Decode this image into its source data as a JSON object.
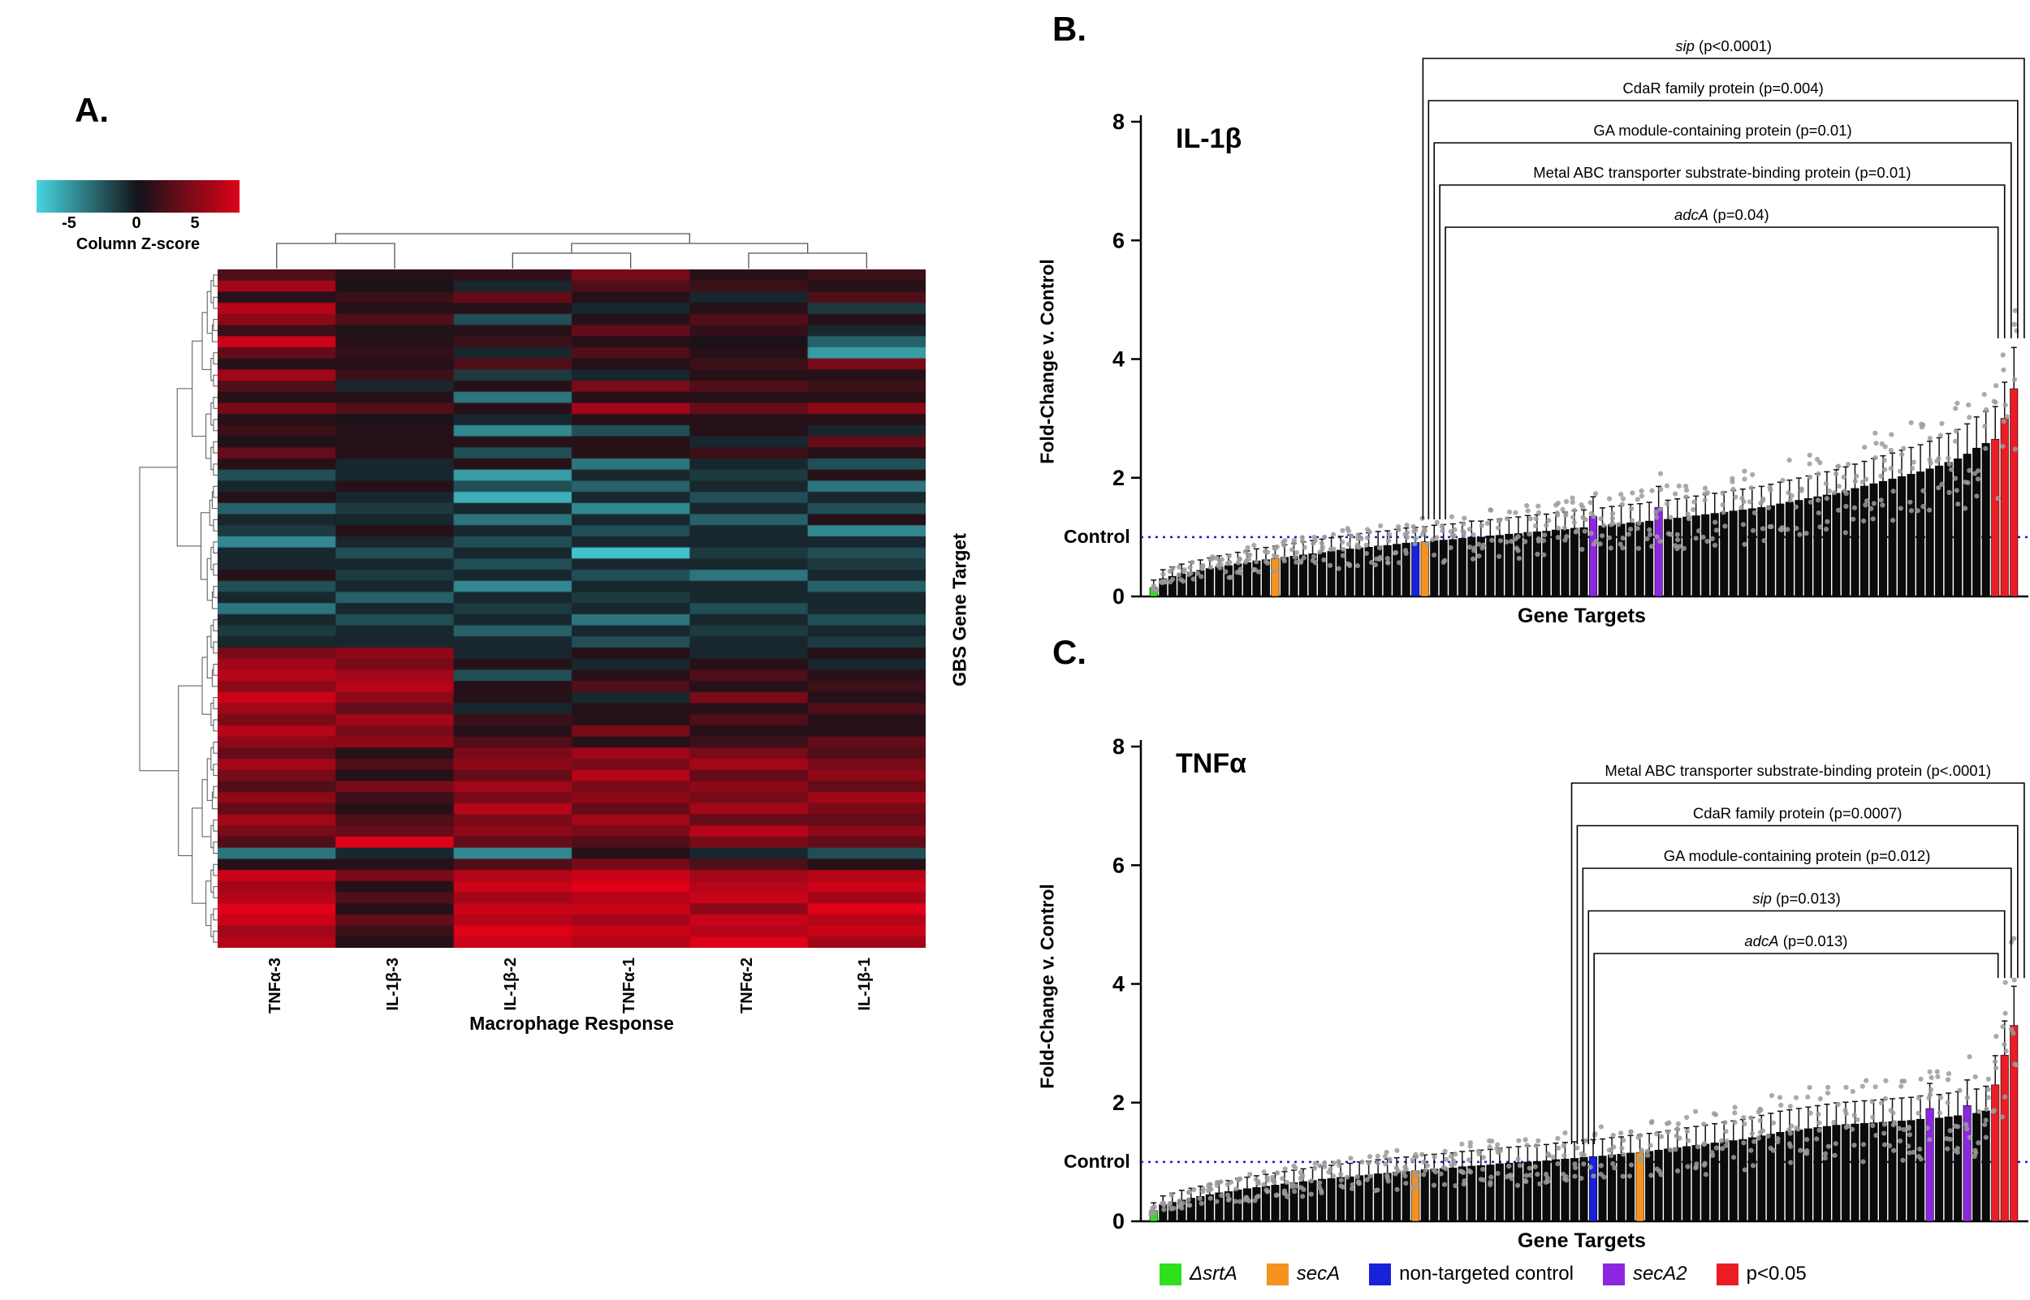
{
  "figure": {
    "panel_a_label": "A.",
    "panel_b_label": "B.",
    "panel_c_label": "C."
  },
  "heatmap": {
    "colorbar": {
      "ticks": [
        "-5",
        "0",
        "5"
      ],
      "label": "Column Z-score",
      "min_color": "#46d6e0",
      "mid_color": "#131319",
      "max_color": "#de0218"
    },
    "zmin": -5,
    "zmax": 5,
    "columns": [
      "TNFα-3",
      "IL-1β-3",
      "IL-1β-2",
      "TNFα-1",
      "TNFα-2",
      "IL-1β-1"
    ],
    "xlabel": "Macrophage Response",
    "ylabel": "GBS Gene Target",
    "col_dendrogram": [
      [
        0,
        1
      ],
      [
        [
          2,
          3
        ],
        [
          4,
          5
        ]
      ]
    ],
    "rows": [
      [
        1.5,
        0.5,
        0.8,
        2.5,
        0.5,
        1.0
      ],
      [
        3.5,
        0.2,
        -0.5,
        1.5,
        1.0,
        0.5
      ],
      [
        0.5,
        1.0,
        2.0,
        0.5,
        -0.5,
        1.5
      ],
      [
        4.0,
        0.5,
        0.5,
        -0.5,
        0.5,
        -1.0
      ],
      [
        3.0,
        1.5,
        -1.5,
        0.5,
        1.5,
        0.5
      ],
      [
        1.0,
        0.3,
        0.5,
        2.0,
        0.8,
        -0.5
      ],
      [
        4.5,
        0.5,
        1.0,
        0.5,
        0.2,
        -2.0
      ],
      [
        2.0,
        0.8,
        -0.5,
        1.5,
        0.5,
        -3.5
      ],
      [
        0.5,
        0.5,
        1.5,
        0.5,
        1.0,
        2.5
      ],
      [
        3.5,
        1.0,
        -1.0,
        -0.5,
        0.5,
        0.5
      ],
      [
        1.5,
        -0.5,
        0.5,
        2.5,
        1.5,
        1.0
      ],
      [
        0.5,
        0.5,
        -2.5,
        0.5,
        0.5,
        0.5
      ],
      [
        2.5,
        1.5,
        0.5,
        3.5,
        2.0,
        3.0
      ],
      [
        0.5,
        0.2,
        -0.5,
        0.5,
        0.5,
        0.5
      ],
      [
        1.0,
        0.5,
        -3.0,
        -1.5,
        0.5,
        -0.5
      ],
      [
        0.3,
        0.5,
        0.5,
        0.5,
        -0.5,
        2.0
      ],
      [
        2.0,
        0.5,
        -1.5,
        0.5,
        1.0,
        0.5
      ],
      [
        0.5,
        -0.5,
        0.5,
        -2.5,
        -0.5,
        -1.5
      ],
      [
        -1.5,
        -0.5,
        -3.5,
        -0.5,
        -1.0,
        0.5
      ],
      [
        -0.5,
        0.5,
        -1.5,
        -2.0,
        -0.5,
        -2.5
      ],
      [
        0.5,
        -0.5,
        -4.0,
        -0.5,
        -1.5,
        -0.5
      ],
      [
        -2.0,
        -1.0,
        -0.5,
        -3.0,
        -0.5,
        -1.5
      ],
      [
        -0.5,
        -0.5,
        -2.5,
        -0.5,
        -2.0,
        0.5
      ],
      [
        -1.0,
        0.5,
        -0.5,
        -1.5,
        -0.5,
        -3.0
      ],
      [
        -3.0,
        -0.5,
        -1.5,
        -0.5,
        -0.5,
        -0.5
      ],
      [
        -0.5,
        -1.5,
        -0.5,
        -4.5,
        -1.0,
        -1.5
      ],
      [
        -0.5,
        -0.5,
        -1.5,
        -0.5,
        -0.5,
        -1.0
      ],
      [
        0.5,
        -1.0,
        -0.5,
        -1.5,
        -2.5,
        -0.5
      ],
      [
        -1.5,
        -0.5,
        -3.0,
        -0.5,
        -0.5,
        -2.0
      ],
      [
        -0.5,
        -2.0,
        -0.5,
        -1.0,
        -0.5,
        -0.5
      ],
      [
        -2.5,
        -0.5,
        -1.0,
        -0.5,
        -1.5,
        -0.5
      ],
      [
        -0.5,
        -1.5,
        -0.5,
        -2.5,
        -0.5,
        -1.5
      ],
      [
        -1.0,
        -0.5,
        -2.0,
        -0.5,
        -1.0,
        -0.5
      ],
      [
        -0.5,
        -0.5,
        -0.5,
        -1.5,
        -0.5,
        -1.0
      ],
      [
        2.5,
        3.0,
        -0.5,
        0.5,
        -0.5,
        0.5
      ],
      [
        3.5,
        2.5,
        0.5,
        -0.5,
        0.5,
        -0.5
      ],
      [
        4.0,
        3.5,
        -1.5,
        0.5,
        1.5,
        0.5
      ],
      [
        3.0,
        4.0,
        0.5,
        1.5,
        0.5,
        1.0
      ],
      [
        4.5,
        3.0,
        0.5,
        -0.5,
        2.5,
        0.5
      ],
      [
        3.5,
        2.0,
        -0.5,
        0.5,
        0.5,
        1.5
      ],
      [
        2.5,
        3.5,
        1.0,
        0.5,
        1.5,
        0.5
      ],
      [
        4.0,
        2.5,
        0.5,
        2.5,
        0.5,
        0.5
      ],
      [
        3.0,
        3.0,
        1.5,
        0.5,
        1.0,
        2.0
      ],
      [
        2.0,
        0.5,
        2.5,
        3.5,
        2.5,
        1.5
      ],
      [
        3.5,
        1.5,
        3.0,
        2.5,
        3.5,
        2.5
      ],
      [
        2.5,
        0.5,
        2.0,
        4.0,
        2.0,
        3.0
      ],
      [
        1.5,
        2.5,
        3.5,
        2.5,
        3.0,
        2.0
      ],
      [
        3.0,
        1.0,
        2.5,
        3.0,
        2.5,
        3.5
      ],
      [
        2.0,
        0.5,
        4.0,
        2.0,
        3.5,
        2.5
      ],
      [
        3.5,
        1.5,
        2.5,
        3.5,
        2.0,
        2.0
      ],
      [
        2.5,
        2.0,
        3.0,
        2.5,
        4.0,
        3.0
      ],
      [
        1.5,
        5.0,
        2.0,
        1.5,
        2.5,
        2.0
      ],
      [
        -2.5,
        -0.5,
        -3.0,
        0.5,
        -0.5,
        -1.5
      ],
      [
        0.5,
        0.5,
        1.5,
        2.5,
        1.5,
        0.5
      ],
      [
        4.5,
        2.5,
        4.0,
        4.5,
        3.5,
        4.0
      ],
      [
        3.5,
        0.5,
        4.5,
        5.0,
        4.0,
        4.5
      ],
      [
        4.0,
        1.5,
        3.5,
        4.0,
        4.5,
        3.5
      ],
      [
        5.0,
        0.5,
        4.5,
        4.5,
        3.0,
        5.0
      ],
      [
        4.5,
        2.0,
        4.0,
        3.5,
        4.5,
        4.0
      ],
      [
        3.5,
        1.0,
        5.0,
        4.5,
        4.0,
        4.5
      ],
      [
        4.0,
        0.5,
        4.5,
        4.0,
        5.0,
        3.5
      ]
    ]
  },
  "chart_data": [
    {
      "type": "bar",
      "panel": "B",
      "title": "IL-1β",
      "ylabel": "Fold-Change v. Control",
      "xlabel": "Gene Targets",
      "control_label": "Control",
      "ylim": [
        0,
        8
      ],
      "yticks": [
        0,
        2,
        4,
        6,
        8
      ],
      "control_value": 1,
      "bar_color": "#0b0b0b",
      "values": [
        0.15,
        0.3,
        0.34,
        0.38,
        0.41,
        0.44,
        0.47,
        0.5,
        0.52,
        0.55,
        0.57,
        0.6,
        0.62,
        0.64,
        0.66,
        0.68,
        0.7,
        0.72,
        0.74,
        0.76,
        0.78,
        0.8,
        0.82,
        0.83,
        0.85,
        0.86,
        0.88,
        0.9,
        0.91,
        0.92,
        0.94,
        0.95,
        0.96,
        0.98,
        1.0,
        1.0,
        1.02,
        1.03,
        1.05,
        1.06,
        1.08,
        1.09,
        1.1,
        1.12,
        1.13,
        1.15,
        1.16,
        1.35,
        1.19,
        1.21,
        1.22,
        1.24,
        1.25,
        1.27,
        1.5,
        1.3,
        1.32,
        1.34,
        1.36,
        1.38,
        1.4,
        1.42,
        1.44,
        1.46,
        1.48,
        1.5,
        1.53,
        1.56,
        1.59,
        1.62,
        1.65,
        1.68,
        1.71,
        1.74,
        1.78,
        1.82,
        1.86,
        1.9,
        1.94,
        1.98,
        2.02,
        2.06,
        2.1,
        2.15,
        2.2,
        2.26,
        2.32,
        2.4,
        2.5,
        2.58,
        2.65,
        3.0,
        3.5
      ],
      "special_bars": [
        {
          "i": 0,
          "color": "#2fe01c",
          "key": "srtA"
        },
        {
          "i": 13,
          "color": "#f6921e",
          "key": "secA"
        },
        {
          "i": 28,
          "color": "#1822d8",
          "key": "non-targeted control"
        },
        {
          "i": 29,
          "color": "#f6921e",
          "key": "secA"
        },
        {
          "i": 47,
          "color": "#8c27e0",
          "key": "secA2"
        },
        {
          "i": 54,
          "color": "#8c27e0",
          "key": "secA2"
        },
        {
          "i": 90,
          "color": "#ec1c24",
          "key": "p<0.05"
        },
        {
          "i": 91,
          "color": "#ec1c24",
          "key": "p<0.05"
        },
        {
          "i": 92,
          "color": "#ec1c24",
          "key": "p<0.05"
        }
      ],
      "brackets": [
        {
          "italic": "sip",
          "text": " (p<0.0001)",
          "span": [
            29.3,
            93.6
          ]
        },
        {
          "italic": "",
          "text": "CdaR family protein (p=0.004)",
          "span": [
            29.9,
            92.9
          ]
        },
        {
          "italic": "",
          "text": "GA module-containing protein (p=0.01)",
          "span": [
            30.5,
            92.2
          ]
        },
        {
          "italic": "",
          "text": "Metal ABC transporter substrate-binding protein (p=0.01)",
          "span": [
            31.1,
            91.5
          ]
        },
        {
          "italic": "adcA",
          "text": " (p=0.04)",
          "span": [
            31.7,
            90.8
          ]
        }
      ]
    },
    {
      "type": "bar",
      "panel": "C",
      "title": "TNFα",
      "ylabel": "Fold-Change v. Control",
      "xlabel": "Gene Targets",
      "control_label": "Control",
      "ylim": [
        0,
        8
      ],
      "yticks": [
        0,
        2,
        4,
        6,
        8
      ],
      "control_value": 1,
      "bar_color": "#0b0b0b",
      "values": [
        0.18,
        0.28,
        0.32,
        0.36,
        0.39,
        0.42,
        0.45,
        0.48,
        0.5,
        0.53,
        0.55,
        0.57,
        0.59,
        0.61,
        0.63,
        0.65,
        0.67,
        0.69,
        0.71,
        0.72,
        0.74,
        0.75,
        0.77,
        0.78,
        0.8,
        0.81,
        0.83,
        0.84,
        0.85,
        0.87,
        0.88,
        0.89,
        0.9,
        0.92,
        0.93,
        0.94,
        0.95,
        0.97,
        0.98,
        0.99,
        1.0,
        1.01,
        1.02,
        1.04,
        1.05,
        1.06,
        1.08,
        1.09,
        1.1,
        1.12,
        1.13,
        1.15,
        1.16,
        1.18,
        1.2,
        1.22,
        1.24,
        1.26,
        1.28,
        1.3,
        1.32,
        1.34,
        1.36,
        1.38,
        1.41,
        1.44,
        1.47,
        1.5,
        1.52,
        1.54,
        1.56,
        1.58,
        1.6,
        1.62,
        1.63,
        1.64,
        1.65,
        1.66,
        1.67,
        1.68,
        1.69,
        1.7,
        1.72,
        1.9,
        1.74,
        1.76,
        1.78,
        1.95,
        1.82,
        1.86,
        2.3,
        2.8,
        3.3
      ],
      "special_bars": [
        {
          "i": 0,
          "color": "#2fe01c",
          "key": "srtA"
        },
        {
          "i": 28,
          "color": "#f6921e",
          "key": "secA"
        },
        {
          "i": 47,
          "color": "#1822d8",
          "key": "non-targeted control"
        },
        {
          "i": 52,
          "color": "#f6921e",
          "key": "secA"
        },
        {
          "i": 83,
          "color": "#8c27e0",
          "key": "secA2"
        },
        {
          "i": 87,
          "color": "#8c27e0",
          "key": "secA2"
        },
        {
          "i": 90,
          "color": "#ec1c24",
          "key": "p<0.05"
        },
        {
          "i": 91,
          "color": "#ec1c24",
          "key": "p<0.05"
        },
        {
          "i": 92,
          "color": "#ec1c24",
          "key": "p<0.05"
        }
      ],
      "brackets": [
        {
          "italic": "",
          "text": "Metal ABC transporter substrate-binding protein (p<.0001)",
          "span": [
            45.2,
            93.6
          ]
        },
        {
          "italic": "",
          "text": "CdaR family protein (p=0.0007)",
          "span": [
            45.8,
            92.9
          ]
        },
        {
          "italic": "",
          "text": "GA module-containing protein (p=0.012)",
          "span": [
            46.4,
            92.2
          ]
        },
        {
          "italic": "sip",
          "text": " (p=0.013)",
          "span": [
            47.0,
            91.5
          ]
        },
        {
          "italic": "adcA",
          "text": " (p=0.013)",
          "span": [
            47.6,
            90.8
          ]
        }
      ]
    }
  ],
  "legend": {
    "items": [
      {
        "color": "#2fe01c",
        "label": "ΔsrtA",
        "italic": true
      },
      {
        "color": "#f6921e",
        "label": "secA",
        "italic": true
      },
      {
        "color": "#1822d8",
        "label": "non-targeted control",
        "italic": false
      },
      {
        "color": "#8c27e0",
        "label": "secA2",
        "italic": true
      },
      {
        "color": "#ec1c24",
        "label": "p<0.05",
        "italic": false
      }
    ]
  }
}
